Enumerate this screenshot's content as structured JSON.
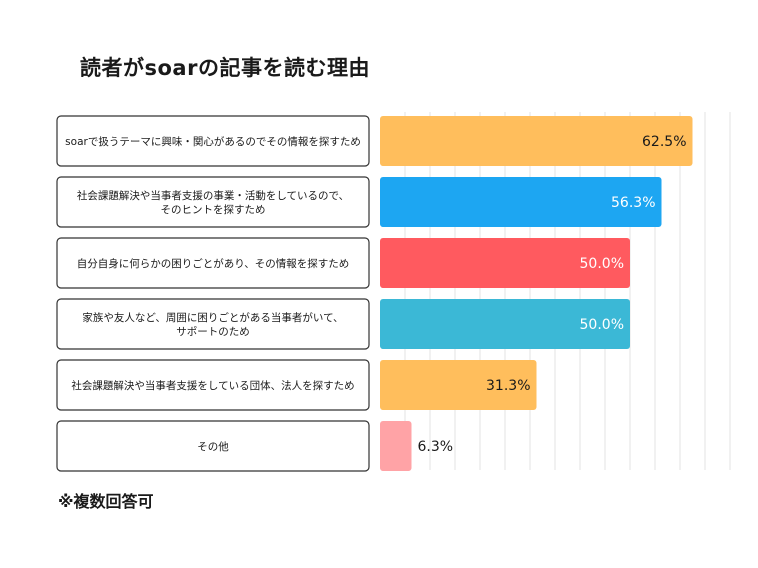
{
  "title": "読者がsoarの記事を読む理由",
  "note": "※複数回答可",
  "chart_data": {
    "type": "bar",
    "orientation": "horizontal",
    "title": "読者がsoarの記事を読む理由",
    "xlim": [
      0,
      70
    ],
    "grid": true,
    "value_suffix": "%",
    "categories": [
      [
        "soarで扱うテーマに興味・関心があるのでその情報を探すため"
      ],
      [
        "社会課題解決や当事者支援の事業・活動をしているので、",
        "そのヒントを探すため"
      ],
      [
        "自分自身に何らかの困りごとがあり、その情報を探すため"
      ],
      [
        "家族や友人など、周囲に困りごとがある当事者がいて、",
        "サポートのため"
      ],
      [
        "社会課題解決や当事者支援をしている団体、法人を探すため"
      ],
      [
        "その他"
      ]
    ],
    "values": [
      62.5,
      56.3,
      50.0,
      50.0,
      31.3,
      6.3
    ],
    "labels": [
      "62.5%",
      "56.3%",
      "50.0%",
      "50.0%",
      "31.3%",
      "6.3%"
    ],
    "colors": [
      "#FFBE5C",
      "#1DA6F2",
      "#FF5A5F",
      "#3BB8D6",
      "#FFBE5C",
      "#FFA3A6"
    ],
    "label_colors": [
      "#1a1a1a",
      "#ffffff",
      "#ffffff",
      "#ffffff",
      "#1a1a1a",
      "#1a1a1a"
    ]
  }
}
